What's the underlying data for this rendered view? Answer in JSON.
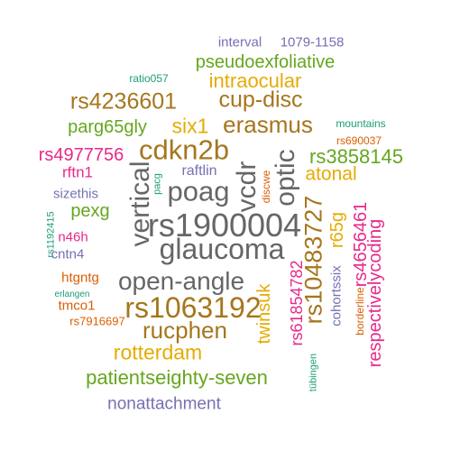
{
  "colors": {
    "gray": "#666666",
    "olive": "#a6761d",
    "gold": "#e6ab02",
    "green": "#66a61e",
    "magenta": "#e7298a",
    "purple": "#7570b3",
    "orange": "#d95f02",
    "teal": "#1b9e77"
  },
  "words": [
    {
      "text": "interval",
      "color": "purple"
    },
    {
      "text": "1079-1158",
      "color": "purple"
    },
    {
      "text": "ratio057",
      "color": "teal"
    },
    {
      "text": "pseudoexfoliative",
      "color": "green"
    },
    {
      "text": "mountains",
      "color": "teal"
    },
    {
      "text": "intraocular",
      "color": "gold"
    },
    {
      "text": "rs4236601",
      "color": "olive"
    },
    {
      "text": "cup-disc",
      "color": "olive"
    },
    {
      "text": "parg65gly",
      "color": "green"
    },
    {
      "text": "six1",
      "color": "gold"
    },
    {
      "text": "erasmus",
      "color": "olive"
    },
    {
      "text": "rs690037",
      "color": "orange"
    },
    {
      "text": "rs4977756",
      "color": "magenta"
    },
    {
      "text": "cdkn2b",
      "color": "olive"
    },
    {
      "text": "rs3858145",
      "color": "green"
    },
    {
      "text": "rftn1",
      "color": "magenta"
    },
    {
      "text": "raftlin",
      "color": "purple"
    },
    {
      "text": "atonal",
      "color": "gold"
    },
    {
      "text": "pacg",
      "color": "teal"
    },
    {
      "text": "poag",
      "color": "gray"
    },
    {
      "text": "vcdr",
      "color": "gray"
    },
    {
      "text": "optic",
      "color": "gray"
    },
    {
      "text": "sizethis",
      "color": "purple"
    },
    {
      "text": "vertical",
      "color": "gray"
    },
    {
      "text": "discwe",
      "color": "orange"
    },
    {
      "text": "rs1192415",
      "color": "teal"
    },
    {
      "text": "pexg",
      "color": "green"
    },
    {
      "text": "rs1900004",
      "color": "gray"
    },
    {
      "text": "rs10483727",
      "color": "olive"
    },
    {
      "text": "r65g",
      "color": "gold"
    },
    {
      "text": "rs4656461",
      "color": "magenta"
    },
    {
      "text": "n46h",
      "color": "magenta"
    },
    {
      "text": "glaucoma",
      "color": "gray"
    },
    {
      "text": "cntn4",
      "color": "purple"
    },
    {
      "text": "htgntg",
      "color": "orange"
    },
    {
      "text": "open-angle",
      "color": "gray"
    },
    {
      "text": "respectivelycoding",
      "color": "magenta"
    },
    {
      "text": "erlangen",
      "color": "teal"
    },
    {
      "text": "rs61854782",
      "color": "magenta"
    },
    {
      "text": "cohortssix",
      "color": "purple"
    },
    {
      "text": "borderline",
      "color": "orange"
    },
    {
      "text": "tmco1",
      "color": "orange"
    },
    {
      "text": "rs1063192",
      "color": "olive"
    },
    {
      "text": "twinsuk",
      "color": "gold"
    },
    {
      "text": "rucphen",
      "color": "olive"
    },
    {
      "text": "rs7916697",
      "color": "orange"
    },
    {
      "text": "rotterdam",
      "color": "gold"
    },
    {
      "text": "tübingen",
      "color": "teal"
    },
    {
      "text": "patientseighty-seven",
      "color": "green"
    },
    {
      "text": "nonattachment",
      "color": "purple"
    }
  ]
}
